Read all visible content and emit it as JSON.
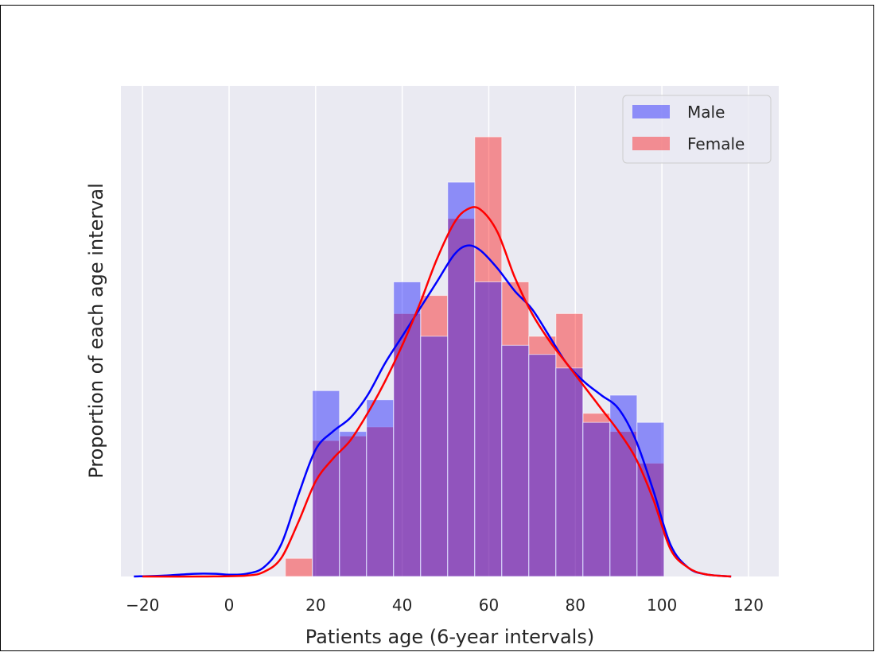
{
  "chart_data": {
    "type": "bar",
    "subtype": "overlaid histogram with density curves",
    "title": "",
    "xlabel": "Patients age (6-year intervals)",
    "ylabel": "Proportion of each age interval",
    "xlim": [
      -25,
      127
    ],
    "ylim": [
      0,
      1.0
    ],
    "y_ticks_shown": false,
    "x_ticks": [
      -20,
      0,
      20,
      40,
      60,
      80,
      100,
      120
    ],
    "x_tick_labels": [
      "−20",
      "0",
      "20",
      "40",
      "60",
      "80",
      "100",
      "120"
    ],
    "grid": "vertical gridlines, white on light grey background",
    "legend_position": "upper-right",
    "bin_edges": [
      13,
      19.25,
      25.5,
      31.75,
      38,
      44.25,
      50.5,
      56.75,
      63,
      69.25,
      75.5,
      81.75,
      88,
      94.25,
      100.5
    ],
    "series": [
      {
        "name": "Male",
        "color": "#0000ff",
        "bar_opacity": 0.4,
        "values": [
          0.0,
          0.41,
          0.32,
          0.39,
          0.65,
          0.53,
          0.87,
          0.65,
          0.51,
          0.49,
          0.46,
          0.34,
          0.4,
          0.34
        ],
        "density_curve": {
          "x": [
            -22,
            -15,
            -8,
            -3,
            0,
            4,
            8,
            12,
            16,
            20,
            24,
            28,
            32,
            36,
            40,
            44,
            48,
            52,
            55,
            58,
            62,
            66,
            70,
            74,
            78,
            82,
            86,
            90,
            94,
            98,
            102,
            106,
            110,
            116
          ],
          "y": [
            0.0,
            0.002,
            0.006,
            0.006,
            0.004,
            0.006,
            0.02,
            0.07,
            0.18,
            0.28,
            0.32,
            0.35,
            0.4,
            0.47,
            0.53,
            0.59,
            0.65,
            0.71,
            0.73,
            0.72,
            0.68,
            0.63,
            0.59,
            0.53,
            0.47,
            0.43,
            0.4,
            0.37,
            0.3,
            0.19,
            0.07,
            0.02,
            0.005,
            0.0
          ]
        }
      },
      {
        "name": "Female",
        "color": "#ff0000",
        "bar_opacity": 0.4,
        "values": [
          0.04,
          0.3,
          0.31,
          0.33,
          0.58,
          0.62,
          0.79,
          0.97,
          0.65,
          0.53,
          0.58,
          0.36,
          0.32,
          0.25
        ],
        "density_curve": {
          "x": [
            -20,
            -5,
            4,
            8,
            12,
            16,
            20,
            24,
            28,
            32,
            36,
            40,
            44,
            48,
            52,
            55,
            58,
            62,
            66,
            70,
            74,
            78,
            82,
            86,
            90,
            94,
            98,
            102,
            106,
            110,
            116
          ],
          "y": [
            0.0,
            0.0,
            0.002,
            0.01,
            0.04,
            0.12,
            0.21,
            0.26,
            0.3,
            0.36,
            0.43,
            0.51,
            0.6,
            0.7,
            0.78,
            0.81,
            0.81,
            0.76,
            0.66,
            0.58,
            0.52,
            0.47,
            0.42,
            0.37,
            0.32,
            0.26,
            0.17,
            0.06,
            0.02,
            0.005,
            0.0
          ]
        }
      }
    ],
    "colors": {
      "plot_background": "#eaeaf2",
      "grid": "#ffffff",
      "overlap": "#b4519a"
    }
  }
}
